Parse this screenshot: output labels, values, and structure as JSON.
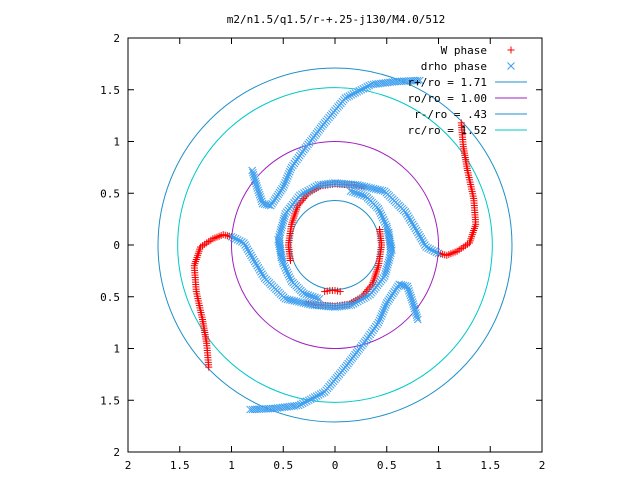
{
  "chart_data": {
    "type": "scatter",
    "title": "m2/n1.5/q1.5/r-+.25-j130/M4.0/512",
    "xlabel": "",
    "ylabel": "",
    "xlim": [
      -2,
      2
    ],
    "ylim": [
      -2,
      2
    ],
    "x_ticks": [
      -2,
      -1.5,
      -1,
      -0.5,
      0,
      0.5,
      1,
      1.5,
      2
    ],
    "y_ticks": [
      -2,
      -1.5,
      -1,
      -0.5,
      0,
      0.5,
      1,
      1.5,
      2
    ],
    "x_tick_labels": [
      "2",
      "1.5",
      "1",
      "0.5",
      "0",
      "0.5",
      "1",
      "1.5",
      "2"
    ],
    "y_tick_labels": [
      "2",
      "1.5",
      "1",
      "0.5",
      "0",
      "0.5",
      "1",
      "1.5",
      "2"
    ],
    "grid": false,
    "legend_position": "top-right",
    "point_series": [
      {
        "name": "W phase",
        "marker": "+",
        "color": "#ff0000",
        "arms": [
          [
            [
              1.0,
              -0.08
            ],
            [
              1.08,
              -0.1
            ],
            [
              1.18,
              -0.06
            ],
            [
              1.3,
              0.02
            ],
            [
              1.36,
              0.2
            ],
            [
              1.34,
              0.45
            ],
            [
              1.28,
              0.72
            ],
            [
              1.24,
              0.95
            ],
            [
              1.22,
              1.18
            ]
          ],
          [
            [
              -1.0,
              0.08
            ],
            [
              -1.08,
              0.1
            ],
            [
              -1.18,
              0.06
            ],
            [
              -1.3,
              -0.02
            ],
            [
              -1.36,
              -0.2
            ],
            [
              -1.34,
              -0.45
            ],
            [
              -1.28,
              -0.72
            ],
            [
              -1.24,
              -0.95
            ],
            [
              -1.22,
              -1.18
            ]
          ],
          [
            [
              0.28,
              0.56
            ],
            [
              0.16,
              0.58
            ],
            [
              0.0,
              0.59
            ],
            [
              -0.14,
              0.57
            ],
            [
              -0.26,
              0.5
            ],
            [
              -0.36,
              0.38
            ],
            [
              -0.42,
              0.2
            ],
            [
              -0.45,
              0.0
            ],
            [
              -0.43,
              -0.15
            ]
          ],
          [
            [
              -0.28,
              -0.56
            ],
            [
              -0.16,
              -0.58
            ],
            [
              0.0,
              -0.59
            ],
            [
              0.14,
              -0.57
            ],
            [
              0.26,
              -0.5
            ],
            [
              0.36,
              -0.38
            ],
            [
              0.42,
              -0.2
            ],
            [
              0.45,
              0.0
            ],
            [
              0.43,
              0.15
            ]
          ],
          [
            [
              -0.1,
              -0.45
            ],
            [
              -0.05,
              -0.44
            ],
            [
              0.0,
              -0.44
            ],
            [
              0.05,
              -0.45
            ]
          ]
        ]
      },
      {
        "name": "drho phase",
        "marker": "x",
        "color": "#3f9fef",
        "arms": [
          [
            [
              -1.0,
              0.08
            ],
            [
              -0.88,
              0.02
            ],
            [
              -0.8,
              -0.12
            ],
            [
              -0.68,
              -0.32
            ],
            [
              -0.48,
              -0.52
            ],
            [
              -0.22,
              -0.58
            ],
            [
              0.0,
              -0.6
            ],
            [
              0.16,
              -0.58
            ],
            [
              0.34,
              -0.48
            ],
            [
              0.48,
              -0.3
            ],
            [
              0.54,
              -0.08
            ],
            [
              0.52,
              0.12
            ]
          ],
          [
            [
              1.0,
              -0.08
            ],
            [
              0.88,
              -0.02
            ],
            [
              0.8,
              0.12
            ],
            [
              0.68,
              0.32
            ],
            [
              0.48,
              0.52
            ],
            [
              0.22,
              0.58
            ],
            [
              0.0,
              0.6
            ],
            [
              -0.16,
              0.58
            ],
            [
              -0.34,
              0.48
            ],
            [
              -0.48,
              0.3
            ],
            [
              -0.54,
              0.08
            ],
            [
              -0.52,
              -0.12
            ]
          ],
          [
            [
              -0.8,
              0.72
            ],
            [
              -0.75,
              0.55
            ],
            [
              -0.7,
              0.4
            ],
            [
              -0.62,
              0.38
            ],
            [
              -0.5,
              0.56
            ],
            [
              -0.42,
              0.75
            ],
            [
              -0.3,
              0.92
            ],
            [
              -0.1,
              1.18
            ],
            [
              0.1,
              1.42
            ],
            [
              0.35,
              1.55
            ],
            [
              0.6,
              1.58
            ],
            [
              0.82,
              1.59
            ]
          ],
          [
            [
              0.8,
              -0.72
            ],
            [
              0.75,
              -0.55
            ],
            [
              0.7,
              -0.4
            ],
            [
              0.62,
              -0.38
            ],
            [
              0.5,
              -0.56
            ],
            [
              0.42,
              -0.75
            ],
            [
              0.3,
              -0.92
            ],
            [
              0.1,
              -1.18
            ],
            [
              -0.1,
              -1.42
            ],
            [
              -0.35,
              -1.55
            ],
            [
              -0.6,
              -1.58
            ],
            [
              -0.82,
              -1.59
            ]
          ],
          [
            [
              -0.55,
              0.05
            ],
            [
              -0.5,
              -0.18
            ],
            [
              -0.42,
              -0.35
            ],
            [
              -0.3,
              -0.47
            ],
            [
              -0.15,
              -0.52
            ]
          ],
          [
            [
              0.55,
              -0.05
            ],
            [
              0.5,
              0.18
            ],
            [
              0.42,
              0.35
            ],
            [
              0.3,
              0.47
            ],
            [
              0.15,
              0.52
            ]
          ]
        ]
      }
    ],
    "circles": [
      {
        "name": "r+/ro = 1.71",
        "radius": 1.71,
        "color": "#1e90c8"
      },
      {
        "name": "ro/ro = 1.00",
        "radius": 1.0,
        "color": "#a020c0"
      },
      {
        "name": "r-/ro = .43",
        "radius": 0.43,
        "color": "#1e90c8"
      },
      {
        "name": "rc/ro = 1.52",
        "radius": 1.52,
        "color": "#00c8c8"
      }
    ],
    "legend_labels": [
      "W phase",
      "drho phase",
      "r+/ro = 1.71",
      "ro/ro = 1.00",
      "r-/ro = .43",
      "rc/ro = 1.52"
    ]
  }
}
